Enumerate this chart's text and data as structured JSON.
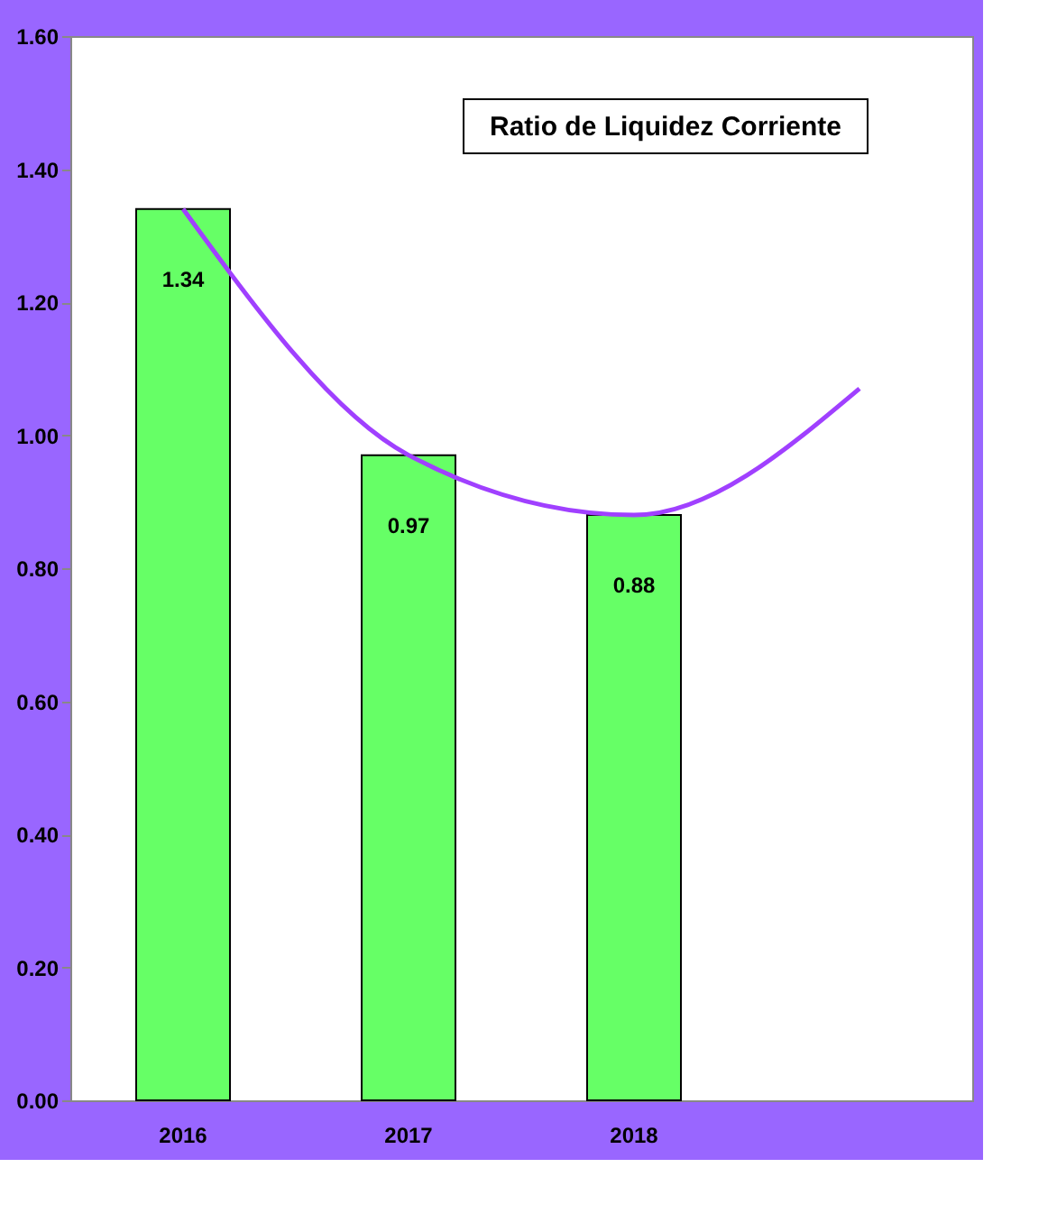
{
  "chart_data": {
    "type": "bar",
    "title": "Ratio de Liquidez Corriente",
    "categories": [
      "2016",
      "2017",
      "2018",
      null
    ],
    "series": [
      {
        "color": "#66ff66",
        "values": [
          1.34,
          0.97,
          0.88,
          null
        ]
      },
      {
        "type": "line",
        "color": "#a040ff",
        "values": [
          1.34,
          0.97,
          0.88,
          1.07
        ]
      }
    ],
    "ylim": [
      0,
      1.6
    ],
    "yticks": [
      {
        "value": 0,
        "label": "0.00"
      },
      {
        "value": 0.2,
        "label": "0.20"
      },
      {
        "value": 0.4,
        "label": "0.40"
      },
      {
        "value": 0.6,
        "label": "0.60"
      },
      {
        "value": 0.8,
        "label": "0.80"
      },
      {
        "value": 1.0,
        "label": "1.00"
      },
      {
        "value": 1.2,
        "label": "1.20"
      },
      {
        "value": 1.4,
        "label": "1.40"
      },
      {
        "value": 1.6,
        "label": "1.60"
      }
    ],
    "value_labels": [
      "1.34",
      "0.97",
      "0.88",
      null
    ],
    "grid": false
  }
}
